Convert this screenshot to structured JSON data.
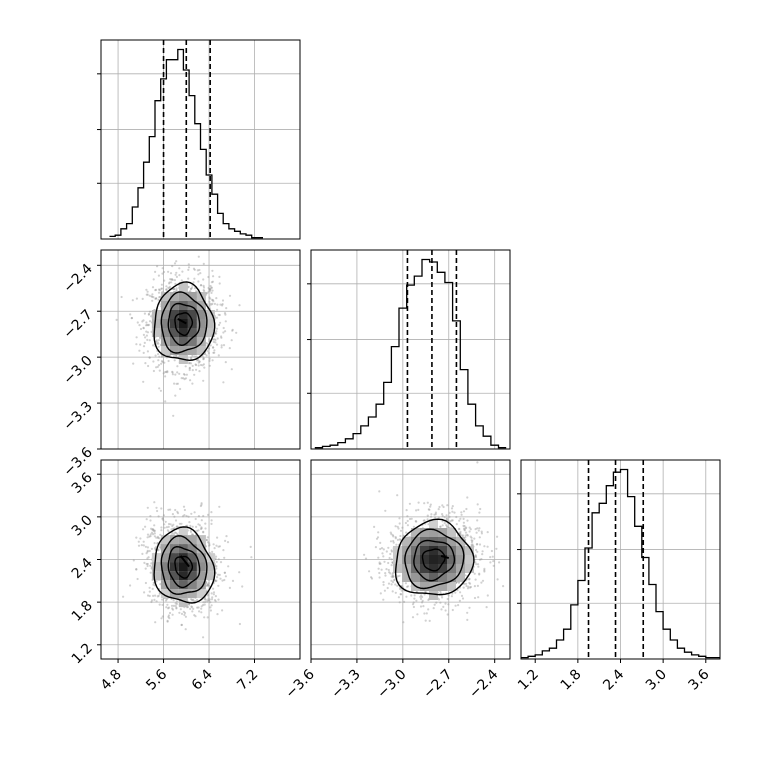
{
  "chart_data": {
    "type": "corner",
    "grid": true,
    "params": [
      {
        "ticks": [
          "4.8",
          "5.6",
          "6.4",
          "7.2"
        ],
        "range": [
          4.5,
          8.0
        ],
        "quantiles": [
          5.6,
          6.0,
          6.42
        ],
        "hist_x": [
          4.7,
          4.8,
          4.9,
          5.0,
          5.1,
          5.2,
          5.3,
          5.4,
          5.5,
          5.6,
          5.7,
          5.8,
          5.9,
          6.0,
          6.1,
          6.2,
          6.3,
          6.4,
          6.5,
          6.6,
          6.7,
          6.8,
          6.9,
          7.0,
          7.1,
          7.2,
          7.3
        ],
        "hist_counts": [
          2,
          3,
          8,
          12,
          25,
          40,
          60,
          80,
          108,
          125,
          140,
          140,
          148,
          132,
          112,
          90,
          70,
          50,
          35,
          20,
          12,
          8,
          6,
          4,
          3,
          1,
          1
        ]
      },
      {
        "ticks": [
          "−3.6",
          "−3.3",
          "−3.0",
          "−2.7",
          "−2.4"
        ],
        "range": [
          -3.6,
          -2.3
        ],
        "quantiles": [
          -2.97,
          -2.81,
          -2.65
        ],
        "hist_x": [
          -3.55,
          -3.5,
          -3.45,
          -3.4,
          -3.35,
          -3.3,
          -3.25,
          -3.2,
          -3.15,
          -3.1,
          -3.05,
          -3.0,
          -2.95,
          -2.9,
          -2.85,
          -2.8,
          -2.75,
          -2.7,
          -2.65,
          -2.6,
          -2.55,
          -2.5,
          -2.45,
          -2.4,
          -2.35
        ],
        "hist_counts": [
          1,
          2,
          3,
          5,
          8,
          12,
          18,
          25,
          35,
          52,
          80,
          110,
          128,
          135,
          148,
          146,
          138,
          130,
          100,
          62,
          35,
          18,
          10,
          3,
          1
        ]
      },
      {
        "ticks": [
          "1.2",
          "1.8",
          "2.4",
          "3.0",
          "3.6"
        ],
        "range": [
          1.0,
          3.8
        ],
        "quantiles": [
          1.95,
          2.33,
          2.72
        ],
        "hist_x": [
          1.05,
          1.15,
          1.25,
          1.35,
          1.45,
          1.55,
          1.65,
          1.75,
          1.85,
          1.95,
          2.05,
          2.15,
          2.25,
          2.35,
          2.45,
          2.55,
          2.65,
          2.75,
          2.85,
          2.95,
          3.05,
          3.15,
          3.25,
          3.35,
          3.45,
          3.55,
          3.65,
          3.75
        ],
        "hist_counts": [
          1,
          2,
          3,
          6,
          8,
          14,
          22,
          40,
          58,
          82,
          108,
          115,
          128,
          138,
          140,
          120,
          98,
          75,
          55,
          35,
          22,
          14,
          8,
          5,
          3,
          2,
          1,
          1
        ]
      }
    ],
    "pairs": [
      {
        "row": 1,
        "col": 0,
        "center": [
          5.95,
          -2.78
        ],
        "sigma": [
          0.25,
          0.12
        ],
        "rho": 0.0,
        "contours": [
          0.3,
          0.55,
          0.8,
          1.05
        ],
        "peaks": [
          [
            5.85,
            -2.75
          ],
          [
            6.0,
            -2.78
          ]
        ]
      },
      {
        "row": 2,
        "col": 0,
        "center": [
          5.95,
          2.3
        ],
        "sigma": [
          0.25,
          0.25
        ],
        "rho": -0.1,
        "contours": [
          0.3,
          0.55,
          0.8,
          1.05
        ],
        "peaks": [
          [
            5.9,
            2.45
          ],
          [
            6.05,
            2.3
          ]
        ]
      },
      {
        "row": 2,
        "col": 1,
        "center": [
          -2.8,
          2.4
        ],
        "sigma": [
          0.12,
          0.25
        ],
        "rho": 0.05,
        "contours": [
          0.3,
          0.55,
          0.8,
          1.05
        ],
        "peaks": [
          [
            -2.75,
            2.45
          ],
          [
            -2.7,
            2.42
          ]
        ]
      }
    ]
  }
}
